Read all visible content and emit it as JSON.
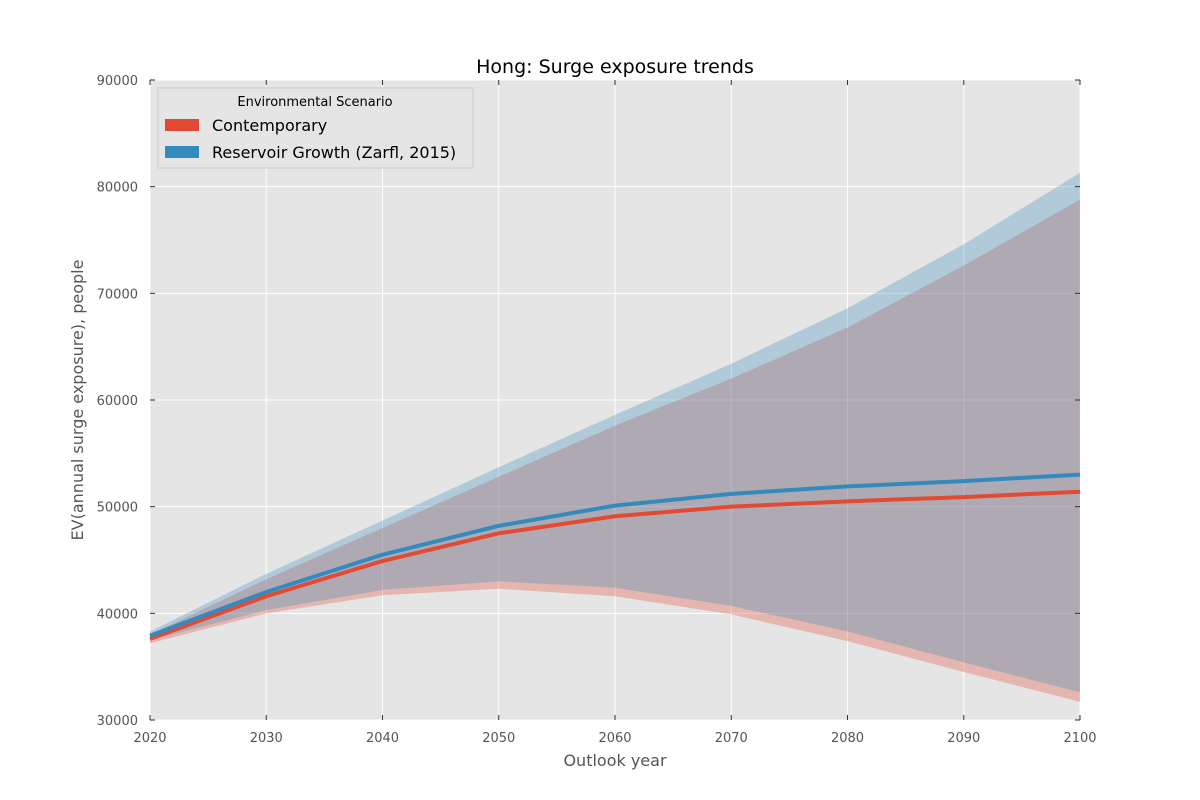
{
  "chart_data": {
    "type": "line",
    "title": "Hong: Surge exposure trends",
    "xlabel": "Outlook year",
    "ylabel": "EV(annual surge exposure), people",
    "xlim": [
      2020,
      2100
    ],
    "ylim": [
      30000,
      90000
    ],
    "x": [
      2020,
      2030,
      2040,
      2050,
      2060,
      2070,
      2080,
      2090,
      2100
    ],
    "x_ticks": [
      "2020",
      "2030",
      "2040",
      "2050",
      "2060",
      "2070",
      "2080",
      "2090",
      "2100"
    ],
    "y_ticks": [
      "30000",
      "40000",
      "50000",
      "60000",
      "70000",
      "80000",
      "90000"
    ],
    "grid": true,
    "legend": {
      "title": "Environmental Scenario",
      "placement": "top-left"
    },
    "series": [
      {
        "name": "Contemporary",
        "color": "#e24a33",
        "band_color": "#e8a89c",
        "values": [
          37600,
          41600,
          44900,
          47500,
          49100,
          50000,
          50500,
          50900,
          51400
        ],
        "upper": [
          38000,
          43200,
          48000,
          52800,
          57600,
          62000,
          66800,
          72600,
          78800
        ],
        "lower": [
          37200,
          40000,
          41700,
          42300,
          41600,
          39900,
          37400,
          34500,
          31700
        ]
      },
      {
        "name": "Reservoir Growth (Zarfl, 2015)",
        "color": "#348abd",
        "band_color": "#a9c6d8",
        "values": [
          37900,
          42000,
          45500,
          48200,
          50100,
          51200,
          51900,
          52400,
          53000
        ],
        "upper": [
          38300,
          43700,
          48700,
          53700,
          58600,
          63400,
          68600,
          74600,
          81300
        ],
        "lower": [
          37500,
          40300,
          42200,
          43000,
          42400,
          40700,
          38300,
          35400,
          32600
        ]
      }
    ]
  }
}
